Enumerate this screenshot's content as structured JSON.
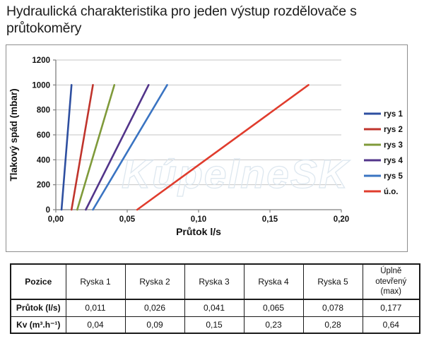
{
  "document": {
    "title": "Hydraulická charakteristika pro jeden výstup rozdělovače s průtokoměry"
  },
  "chart_data": {
    "type": "line",
    "title": "",
    "xlabel": "Průtok l/s",
    "ylabel": "Tlakový spád (mbar)",
    "xlim": [
      0,
      0.2
    ],
    "ylim": [
      0,
      1200
    ],
    "xticks": {
      "values": [
        0,
        0.05,
        0.1,
        0.15,
        0.2
      ],
      "labels": [
        "0,00",
        "0,05",
        "0,10",
        "0,15",
        "0,20"
      ]
    },
    "yticks": {
      "values": [
        0,
        200,
        400,
        600,
        800,
        1000,
        1200
      ],
      "labels": [
        "0",
        "200",
        "400",
        "600",
        "800",
        "1000",
        "1200"
      ]
    },
    "grid": "horizontal",
    "legend_position": "right-outside",
    "watermark": "KúpelneSK",
    "colors": {
      "gridline": "#c6c6c6",
      "axis": "#7f7f7f",
      "watermark_outline": "#dce6ef"
    },
    "series": [
      {
        "name": "rys 1",
        "color": "#2e4fa0",
        "points": [
          [
            0.004,
            0
          ],
          [
            0.011,
            1000
          ]
        ]
      },
      {
        "name": "rys 2",
        "color": "#c0342c",
        "points": [
          [
            0.011,
            0
          ],
          [
            0.026,
            1000
          ]
        ]
      },
      {
        "name": "rys 3",
        "color": "#7f9a3a",
        "points": [
          [
            0.015,
            0
          ],
          [
            0.041,
            1000
          ]
        ]
      },
      {
        "name": "rys 4",
        "color": "#52348a",
        "points": [
          [
            0.021,
            0
          ],
          [
            0.065,
            1000
          ]
        ]
      },
      {
        "name": "rys 5",
        "color": "#3a74c2",
        "points": [
          [
            0.026,
            0
          ],
          [
            0.078,
            1000
          ]
        ]
      },
      {
        "name": "ú.o.",
        "color": "#e03c2d",
        "points": [
          [
            0.057,
            0
          ],
          [
            0.177,
            1000
          ]
        ]
      }
    ]
  },
  "table": {
    "columns": [
      "Pozice",
      "Ryska 1",
      "Ryska 2",
      "Ryska 3",
      "Ryska 4",
      "Ryska 5",
      "Úplně otevřený (max)"
    ],
    "rows": [
      {
        "label": "Průtok (l/s)",
        "values": [
          "0,011",
          "0,026",
          "0,041",
          "0,065",
          "0,078",
          "0,177"
        ]
      },
      {
        "label": "Kv (m³.h⁻¹)",
        "values": [
          "0,04",
          "0,09",
          "0,15",
          "0,23",
          "0,28",
          "0,64"
        ]
      }
    ]
  }
}
